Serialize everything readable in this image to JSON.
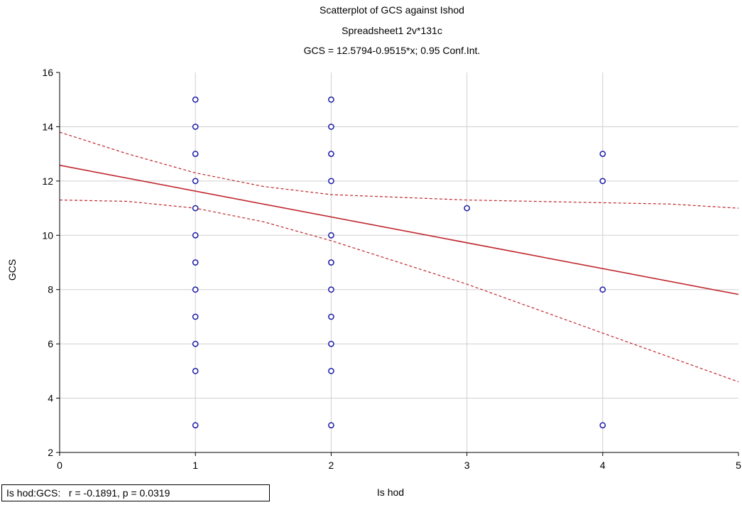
{
  "chart_data": {
    "type": "scatter",
    "title": "Scatterplot of GCS against Ishod",
    "subtitle": "Spreadsheet1 2v*131c",
    "equation": "GCS = 12.5794-0.9515*x; 0.95 Conf.Int.",
    "xlabel": "Is hod",
    "ylabel": "GCS",
    "xlim": [
      0,
      5
    ],
    "ylim": [
      2,
      16
    ],
    "xticks": [
      "0",
      "1",
      "2",
      "3",
      "4",
      "5"
    ],
    "yticks": [
      "2",
      "4",
      "6",
      "8",
      "10",
      "12",
      "14",
      "16"
    ],
    "grid": true,
    "points": [
      {
        "x": 1,
        "y": 15
      },
      {
        "x": 1,
        "y": 14
      },
      {
        "x": 1,
        "y": 13
      },
      {
        "x": 1,
        "y": 12
      },
      {
        "x": 1,
        "y": 11
      },
      {
        "x": 1,
        "y": 10
      },
      {
        "x": 1,
        "y": 9
      },
      {
        "x": 1,
        "y": 8
      },
      {
        "x": 1,
        "y": 7
      },
      {
        "x": 1,
        "y": 6
      },
      {
        "x": 1,
        "y": 5
      },
      {
        "x": 1,
        "y": 3
      },
      {
        "x": 2,
        "y": 15
      },
      {
        "x": 2,
        "y": 14
      },
      {
        "x": 2,
        "y": 13
      },
      {
        "x": 2,
        "y": 12
      },
      {
        "x": 2,
        "y": 10
      },
      {
        "x": 2,
        "y": 9
      },
      {
        "x": 2,
        "y": 8
      },
      {
        "x": 2,
        "y": 7
      },
      {
        "x": 2,
        "y": 6
      },
      {
        "x": 2,
        "y": 5
      },
      {
        "x": 2,
        "y": 3
      },
      {
        "x": 3,
        "y": 11
      },
      {
        "x": 4,
        "y": 13
      },
      {
        "x": 4,
        "y": 12
      },
      {
        "x": 4,
        "y": 8
      },
      {
        "x": 4,
        "y": 3
      }
    ],
    "regression": {
      "intercept": 12.5794,
      "slope": -0.9515
    },
    "ci_upper": [
      {
        "x": 0,
        "y": 13.8
      },
      {
        "x": 0.5,
        "y": 13.0
      },
      {
        "x": 1,
        "y": 12.3
      },
      {
        "x": 1.5,
        "y": 11.8
      },
      {
        "x": 2,
        "y": 11.5
      },
      {
        "x": 2.5,
        "y": 11.4
      },
      {
        "x": 3,
        "y": 11.3
      },
      {
        "x": 3.5,
        "y": 11.25
      },
      {
        "x": 4,
        "y": 11.2
      },
      {
        "x": 4.5,
        "y": 11.15
      },
      {
        "x": 5,
        "y": 11.0
      }
    ],
    "ci_lower": [
      {
        "x": 0,
        "y": 11.3
      },
      {
        "x": 0.5,
        "y": 11.25
      },
      {
        "x": 1,
        "y": 11.0
      },
      {
        "x": 1.5,
        "y": 10.5
      },
      {
        "x": 2,
        "y": 9.8
      },
      {
        "x": 2.5,
        "y": 9.0
      },
      {
        "x": 3,
        "y": 8.2
      },
      {
        "x": 3.5,
        "y": 7.3
      },
      {
        "x": 4,
        "y": 6.4
      },
      {
        "x": 4.5,
        "y": 5.5
      },
      {
        "x": 5,
        "y": 4.6
      }
    ],
    "colors": {
      "points": "#1a1aa6",
      "fit_line": "#c0272d",
      "ci_lines": "#c0272d",
      "grid": "#cfcfcf",
      "axis": "#000000"
    },
    "stat_text": "Is hod:GCS:   r = -0.1891, p = 0.0319"
  }
}
